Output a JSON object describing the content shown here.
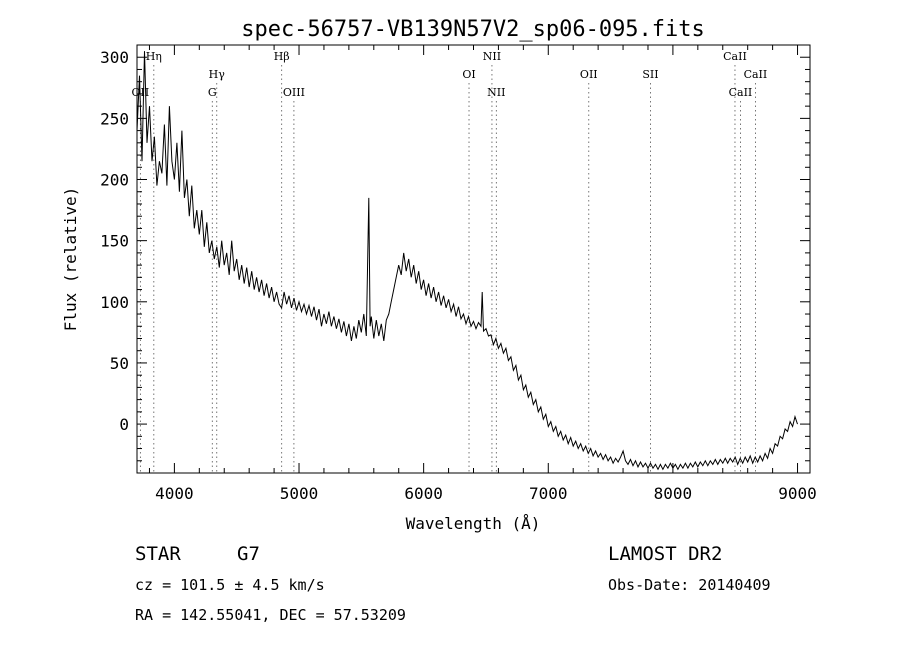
{
  "chart_data": {
    "type": "line",
    "title": "spec-56757-VB139N57V2_sp06-095.fits",
    "xlabel": "Wavelength (Å)",
    "ylabel": "Flux (relative)",
    "xlim": [
      3700,
      9100
    ],
    "ylim": [
      -40,
      310
    ],
    "x_ticks": [
      4000,
      5000,
      6000,
      7000,
      8000,
      9000
    ],
    "y_ticks": [
      0,
      50,
      100,
      150,
      200,
      250,
      300
    ],
    "grid": false,
    "line_color": "#000000",
    "spectrum": [
      [
        3700,
        240
      ],
      [
        3720,
        285
      ],
      [
        3740,
        215
      ],
      [
        3760,
        305
      ],
      [
        3780,
        230
      ],
      [
        3800,
        260
      ],
      [
        3820,
        215
      ],
      [
        3840,
        235
      ],
      [
        3860,
        195
      ],
      [
        3880,
        215
      ],
      [
        3900,
        205
      ],
      [
        3920,
        245
      ],
      [
        3940,
        195
      ],
      [
        3960,
        260
      ],
      [
        3980,
        215
      ],
      [
        4000,
        200
      ],
      [
        4020,
        230
      ],
      [
        4040,
        190
      ],
      [
        4060,
        240
      ],
      [
        4080,
        185
      ],
      [
        4100,
        200
      ],
      [
        4120,
        170
      ],
      [
        4140,
        195
      ],
      [
        4160,
        160
      ],
      [
        4180,
        175
      ],
      [
        4200,
        155
      ],
      [
        4220,
        175
      ],
      [
        4240,
        145
      ],
      [
        4260,
        165
      ],
      [
        4280,
        140
      ],
      [
        4300,
        150
      ],
      [
        4320,
        135
      ],
      [
        4340,
        145
      ],
      [
        4360,
        128
      ],
      [
        4380,
        150
      ],
      [
        4400,
        130
      ],
      [
        4420,
        140
      ],
      [
        4440,
        122
      ],
      [
        4460,
        150
      ],
      [
        4480,
        125
      ],
      [
        4500,
        135
      ],
      [
        4520,
        118
      ],
      [
        4540,
        130
      ],
      [
        4560,
        115
      ],
      [
        4580,
        128
      ],
      [
        4600,
        112
      ],
      [
        4620,
        125
      ],
      [
        4640,
        110
      ],
      [
        4660,
        120
      ],
      [
        4680,
        108
      ],
      [
        4700,
        118
      ],
      [
        4720,
        105
      ],
      [
        4740,
        115
      ],
      [
        4760,
        103
      ],
      [
        4780,
        112
      ],
      [
        4800,
        100
      ],
      [
        4820,
        108
      ],
      [
        4840,
        98
      ],
      [
        4860,
        95
      ],
      [
        4880,
        108
      ],
      [
        4900,
        98
      ],
      [
        4920,
        105
      ],
      [
        4940,
        95
      ],
      [
        4960,
        103
      ],
      [
        4980,
        93
      ],
      [
        5000,
        100
      ],
      [
        5020,
        92
      ],
      [
        5040,
        98
      ],
      [
        5060,
        90
      ],
      [
        5080,
        97
      ],
      [
        5100,
        88
      ],
      [
        5120,
        96
      ],
      [
        5140,
        85
      ],
      [
        5160,
        94
      ],
      [
        5180,
        80
      ],
      [
        5200,
        90
      ],
      [
        5220,
        82
      ],
      [
        5240,
        92
      ],
      [
        5260,
        80
      ],
      [
        5280,
        88
      ],
      [
        5300,
        78
      ],
      [
        5320,
        86
      ],
      [
        5340,
        75
      ],
      [
        5360,
        84
      ],
      [
        5380,
        72
      ],
      [
        5400,
        82
      ],
      [
        5420,
        68
      ],
      [
        5440,
        80
      ],
      [
        5460,
        70
      ],
      [
        5480,
        85
      ],
      [
        5500,
        75
      ],
      [
        5520,
        90
      ],
      [
        5540,
        72
      ],
      [
        5560,
        185
      ],
      [
        5570,
        80
      ],
      [
        5580,
        88
      ],
      [
        5600,
        70
      ],
      [
        5620,
        85
      ],
      [
        5640,
        72
      ],
      [
        5660,
        82
      ],
      [
        5680,
        68
      ],
      [
        5700,
        85
      ],
      [
        5720,
        90
      ],
      [
        5740,
        100
      ],
      [
        5760,
        110
      ],
      [
        5780,
        120
      ],
      [
        5800,
        130
      ],
      [
        5820,
        122
      ],
      [
        5840,
        140
      ],
      [
        5860,
        125
      ],
      [
        5880,
        135
      ],
      [
        5900,
        120
      ],
      [
        5920,
        130
      ],
      [
        5940,
        115
      ],
      [
        5960,
        125
      ],
      [
        5980,
        110
      ],
      [
        6000,
        118
      ],
      [
        6020,
        105
      ],
      [
        6040,
        115
      ],
      [
        6060,
        103
      ],
      [
        6080,
        112
      ],
      [
        6100,
        100
      ],
      [
        6120,
        108
      ],
      [
        6140,
        97
      ],
      [
        6160,
        105
      ],
      [
        6180,
        95
      ],
      [
        6200,
        102
      ],
      [
        6220,
        92
      ],
      [
        6240,
        98
      ],
      [
        6260,
        88
      ],
      [
        6280,
        96
      ],
      [
        6300,
        86
      ],
      [
        6320,
        90
      ],
      [
        6340,
        82
      ],
      [
        6360,
        88
      ],
      [
        6380,
        80
      ],
      [
        6400,
        84
      ],
      [
        6420,
        78
      ],
      [
        6440,
        83
      ],
      [
        6460,
        80
      ],
      [
        6470,
        108
      ],
      [
        6480,
        76
      ],
      [
        6500,
        78
      ],
      [
        6520,
        72
      ],
      [
        6540,
        73
      ],
      [
        6560,
        65
      ],
      [
        6580,
        70
      ],
      [
        6600,
        62
      ],
      [
        6620,
        66
      ],
      [
        6640,
        58
      ],
      [
        6660,
        62
      ],
      [
        6680,
        52
      ],
      [
        6700,
        55
      ],
      [
        6720,
        44
      ],
      [
        6740,
        48
      ],
      [
        6760,
        36
      ],
      [
        6780,
        40
      ],
      [
        6800,
        28
      ],
      [
        6820,
        32
      ],
      [
        6840,
        22
      ],
      [
        6860,
        26
      ],
      [
        6880,
        16
      ],
      [
        6900,
        20
      ],
      [
        6920,
        10
      ],
      [
        6940,
        14
      ],
      [
        6960,
        4
      ],
      [
        6980,
        8
      ],
      [
        7000,
        -2
      ],
      [
        7020,
        2
      ],
      [
        7040,
        -6
      ],
      [
        7060,
        -2
      ],
      [
        7080,
        -10
      ],
      [
        7100,
        -6
      ],
      [
        7120,
        -13
      ],
      [
        7140,
        -9
      ],
      [
        7160,
        -16
      ],
      [
        7180,
        -11
      ],
      [
        7200,
        -18
      ],
      [
        7220,
        -14
      ],
      [
        7240,
        -20
      ],
      [
        7260,
        -16
      ],
      [
        7280,
        -22
      ],
      [
        7300,
        -18
      ],
      [
        7320,
        -24
      ],
      [
        7340,
        -20
      ],
      [
        7360,
        -26
      ],
      [
        7380,
        -22
      ],
      [
        7400,
        -27
      ],
      [
        7420,
        -24
      ],
      [
        7440,
        -29
      ],
      [
        7460,
        -25
      ],
      [
        7480,
        -30
      ],
      [
        7500,
        -27
      ],
      [
        7520,
        -32
      ],
      [
        7540,
        -28
      ],
      [
        7560,
        -31
      ],
      [
        7580,
        -27
      ],
      [
        7600,
        -22
      ],
      [
        7620,
        -30
      ],
      [
        7640,
        -33
      ],
      [
        7660,
        -29
      ],
      [
        7680,
        -34
      ],
      [
        7700,
        -30
      ],
      [
        7720,
        -35
      ],
      [
        7740,
        -31
      ],
      [
        7760,
        -35
      ],
      [
        7780,
        -32
      ],
      [
        7800,
        -36
      ],
      [
        7820,
        -32
      ],
      [
        7840,
        -36
      ],
      [
        7860,
        -33
      ],
      [
        7880,
        -37
      ],
      [
        7900,
        -33
      ],
      [
        7920,
        -37
      ],
      [
        7940,
        -33
      ],
      [
        7960,
        -36
      ],
      [
        7980,
        -32
      ],
      [
        8000,
        -36
      ],
      [
        8020,
        -33
      ],
      [
        8040,
        -37
      ],
      [
        8060,
        -33
      ],
      [
        8080,
        -36
      ],
      [
        8100,
        -32
      ],
      [
        8120,
        -36
      ],
      [
        8140,
        -32
      ],
      [
        8160,
        -35
      ],
      [
        8180,
        -31
      ],
      [
        8200,
        -35
      ],
      [
        8220,
        -31
      ],
      [
        8240,
        -34
      ],
      [
        8260,
        -30
      ],
      [
        8280,
        -34
      ],
      [
        8300,
        -30
      ],
      [
        8320,
        -33
      ],
      [
        8340,
        -29
      ],
      [
        8360,
        -33
      ],
      [
        8380,
        -29
      ],
      [
        8400,
        -32
      ],
      [
        8420,
        -28
      ],
      [
        8440,
        -32
      ],
      [
        8460,
        -28
      ],
      [
        8480,
        -31
      ],
      [
        8500,
        -27
      ],
      [
        8520,
        -33
      ],
      [
        8540,
        -28
      ],
      [
        8560,
        -32
      ],
      [
        8580,
        -27
      ],
      [
        8600,
        -31
      ],
      [
        8620,
        -26
      ],
      [
        8640,
        -32
      ],
      [
        8660,
        -27
      ],
      [
        8680,
        -31
      ],
      [
        8700,
        -26
      ],
      [
        8720,
        -30
      ],
      [
        8740,
        -24
      ],
      [
        8760,
        -28
      ],
      [
        8780,
        -20
      ],
      [
        8800,
        -24
      ],
      [
        8820,
        -16
      ],
      [
        8840,
        -18
      ],
      [
        8860,
        -10
      ],
      [
        8880,
        -12
      ],
      [
        8900,
        -4
      ],
      [
        8920,
        -6
      ],
      [
        8940,
        2
      ],
      [
        8960,
        -2
      ],
      [
        8980,
        6
      ],
      [
        9000,
        0
      ]
    ],
    "line_markers": [
      {
        "label": "OII",
        "wavelength": 3727,
        "row": 3
      },
      {
        "label": "Hη",
        "wavelength": 3835,
        "row": 1
      },
      {
        "label": "Hγ",
        "wavelength": 4340,
        "row": 2
      },
      {
        "label": "G",
        "wavelength": 4304,
        "row": 3
      },
      {
        "label": "Hβ",
        "wavelength": 4861,
        "row": 1
      },
      {
        "label": "OIII",
        "wavelength": 4959,
        "row": 3
      },
      {
        "label": "OI",
        "wavelength": 6364,
        "row": 2
      },
      {
        "label": "NII",
        "wavelength": 6548,
        "row": 1
      },
      {
        "label": "NII",
        "wavelength": 6583,
        "row": 3
      },
      {
        "label": "OII",
        "wavelength": 7325,
        "row": 2
      },
      {
        "label": "SII",
        "wavelength": 7820,
        "row": 2
      },
      {
        "label": "CaII",
        "wavelength": 8498,
        "row": 1
      },
      {
        "label": "CaII",
        "wavelength": 8542,
        "row": 3
      },
      {
        "label": "CaII",
        "wavelength": 8662,
        "row": 2
      }
    ]
  },
  "footer": {
    "object_class": "STAR",
    "subclass": "G7",
    "survey": "LAMOST DR2",
    "cz": "cz = 101.5 ± 4.5 km/s",
    "obs_date": "Obs-Date: 20140409",
    "coords": "RA = 142.55041, DEC =  57.53209"
  }
}
